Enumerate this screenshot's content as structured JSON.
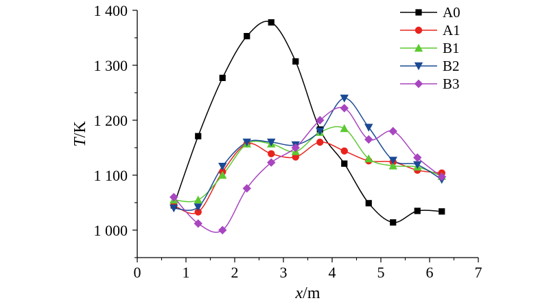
{
  "chart_data": {
    "type": "line",
    "title": "",
    "xlabel": {
      "var": "x",
      "unit": "/m"
    },
    "ylabel": {
      "var": "T",
      "unit": "/K"
    },
    "xlim": [
      0,
      7
    ],
    "ylim": [
      950,
      1400
    ],
    "x_ticks": [
      0,
      1,
      2,
      3,
      4,
      5,
      6,
      7
    ],
    "x_tick_labels": [
      "0",
      "1",
      "2",
      "3",
      "4",
      "5",
      "6",
      "7"
    ],
    "y_ticks": [
      1000,
      1100,
      1200,
      1300,
      1400
    ],
    "y_tick_labels": [
      "1 000",
      "1 100",
      "1 200",
      "1 300",
      "1 400"
    ],
    "grid": false,
    "legend_position": "top-right",
    "x": [
      0.75,
      1.25,
      1.75,
      2.25,
      2.75,
      3.25,
      3.75,
      4.25,
      4.75,
      5.25,
      5.75,
      6.25
    ],
    "series": [
      {
        "name": "A0",
        "color": "#000000",
        "marker": "square",
        "values": [
          1045,
          1171,
          1277,
          1353,
          1378,
          1307,
          1183,
          1121,
          1049,
          1014,
          1035,
          1034
        ]
      },
      {
        "name": "A1",
        "color": "#e8231d",
        "marker": "circle",
        "values": [
          1045,
          1033,
          1106,
          1157,
          1139,
          1133,
          1160,
          1144,
          1126,
          1124,
          1109,
          1104
        ]
      },
      {
        "name": "B1",
        "color": "#5cc931",
        "marker": "triangle-up",
        "values": [
          1055,
          1055,
          1100,
          1157,
          1157,
          1143,
          1178,
          1185,
          1130,
          1117,
          1115,
          1098
        ]
      },
      {
        "name": "B2",
        "color": "#1a4a94",
        "marker": "triangle-down",
        "values": [
          1040,
          1042,
          1116,
          1160,
          1160,
          1155,
          1180,
          1240,
          1187,
          1127,
          1119,
          1092
        ]
      },
      {
        "name": "B3",
        "color": "#a845c0",
        "marker": "diamond",
        "values": [
          1060,
          1012,
          1000,
          1076,
          1123,
          1150,
          1200,
          1222,
          1165,
          1180,
          1132,
          1097
        ]
      }
    ]
  }
}
